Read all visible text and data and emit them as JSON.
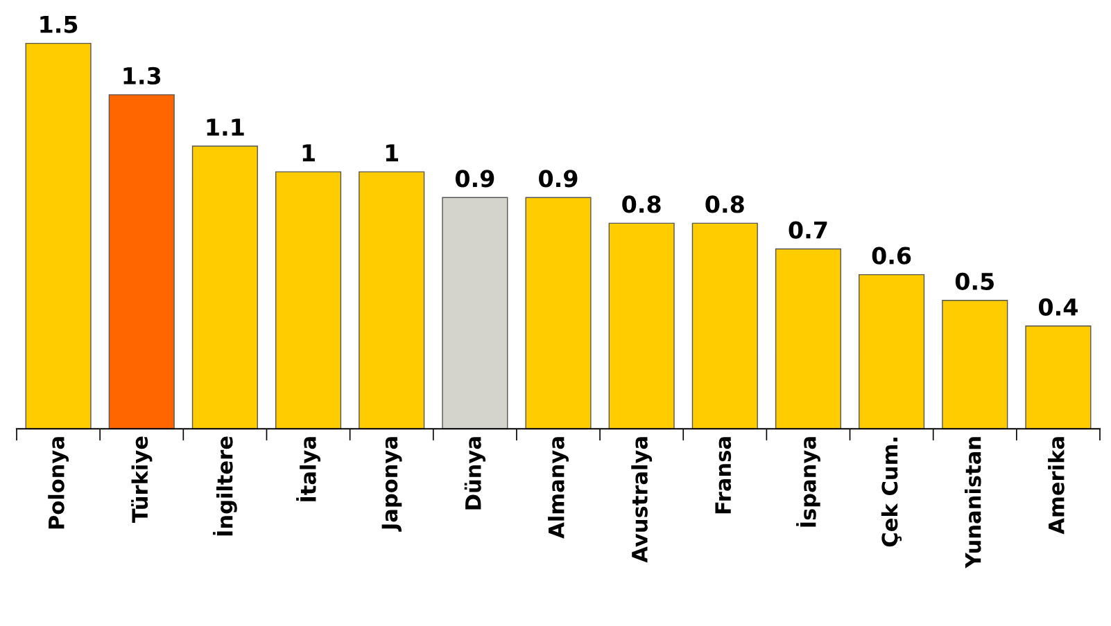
{
  "chart_data": {
    "type": "bar",
    "categories": [
      "Polonya",
      "Türkiye",
      "İngiltere",
      "İtalya",
      "Japonya",
      "Dünya",
      "Almanya",
      "Avustralya",
      "Fransa",
      "İspanya",
      "Çek Cum.",
      "Yunanistan",
      "Amerika"
    ],
    "values": [
      1.5,
      1.3,
      1.1,
      1,
      1,
      0.9,
      0.9,
      0.8,
      0.8,
      0.7,
      0.6,
      0.5,
      0.4
    ],
    "colors": [
      "#ffcc00",
      "#ff6600",
      "#ffcc00",
      "#ffcc00",
      "#ffcc00",
      "#d4d4cc",
      "#ffcc00",
      "#ffcc00",
      "#ffcc00",
      "#ffcc00",
      "#ffcc00",
      "#ffcc00",
      "#ffcc00"
    ],
    "data_labels": true,
    "grid": false,
    "legend": false
  }
}
